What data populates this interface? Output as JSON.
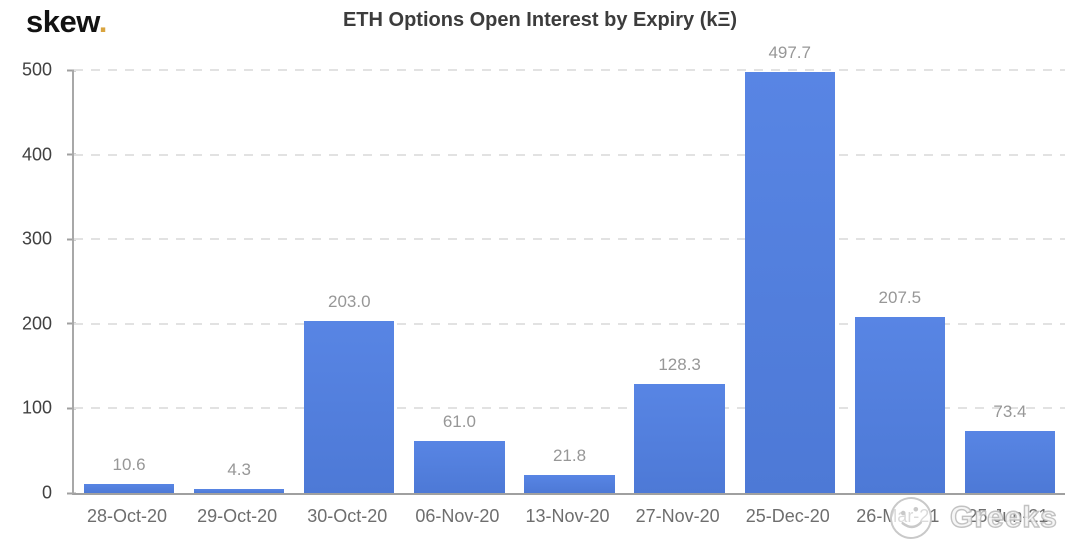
{
  "brand": {
    "logo_text": "skew",
    "logo_dot": ".",
    "logo_dot_color": "#d9a43f"
  },
  "chart_data": {
    "type": "bar",
    "title": "ETH Options Open Interest by Expiry (kΞ)",
    "categories": [
      "28-Oct-20",
      "29-Oct-20",
      "30-Oct-20",
      "06-Nov-20",
      "13-Nov-20",
      "27-Nov-20",
      "25-Dec-20",
      "26-Mar-21",
      "25-Jun-21"
    ],
    "values": [
      10.6,
      4.3,
      203.0,
      61.0,
      21.8,
      128.3,
      497.7,
      207.5,
      73.4
    ],
    "value_labels": [
      "10.6",
      "4.3",
      "203.0",
      "61.0",
      "21.8",
      "128.3",
      "497.7",
      "207.5",
      "73.4"
    ],
    "xlabel": "",
    "ylabel": "",
    "ylim": [
      0,
      500
    ],
    "yticks": [
      0,
      100,
      200,
      300,
      400,
      500
    ],
    "grid": "horizontal-dashed",
    "legend": "none",
    "bar_color_top": "#5885e4",
    "bar_color_bottom": "#4d79d6",
    "value_label_color": "#979797",
    "axis_color": "#a0a0a0"
  },
  "watermark": {
    "icon": "smiley-face",
    "text": "Greeks"
  }
}
